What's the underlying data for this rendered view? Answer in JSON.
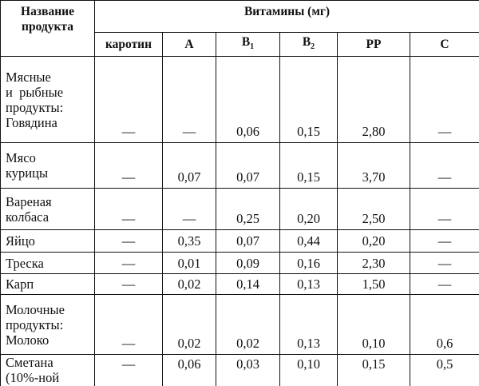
{
  "table": {
    "header": {
      "name": "Название продукта",
      "group": "Витамины (мг)",
      "columns": [
        {
          "letter": "каротин"
        },
        {
          "letter": "А"
        },
        {
          "letter": "В",
          "sub": "1"
        },
        {
          "letter": "В",
          "sub": "2"
        },
        {
          "letter": "PP"
        },
        {
          "letter": "С"
        }
      ]
    },
    "rows": [
      {
        "name": [
          "Мясные",
          "и  рыбные",
          "продукты:",
          "Говядина"
        ],
        "values": [
          "—",
          "—",
          "0,06",
          "0,15",
          "2,80",
          "—"
        ]
      },
      {
        "name": [
          "Мясо",
          "курицы"
        ],
        "values": [
          "—",
          "0,07",
          "0,07",
          "0,15",
          "3,70",
          "—"
        ]
      },
      {
        "name": [
          "Вареная",
          "колбаса"
        ],
        "values": [
          "—",
          "—",
          "0,25",
          "0,20",
          "2,50",
          "—"
        ]
      },
      {
        "name": [
          "Яйцо"
        ],
        "values": [
          "—",
          "0,35",
          "0,07",
          "0,44",
          "0,20",
          "—"
        ]
      },
      {
        "name": [
          "Треска"
        ],
        "values": [
          "—",
          "0,01",
          "0,09",
          "0,16",
          "2,30",
          "—"
        ]
      },
      {
        "name": [
          "Карп"
        ],
        "values": [
          "—",
          "0,02",
          "0,14",
          "0,13",
          "1,50",
          "—"
        ]
      },
      {
        "name": [
          "Молочные",
          "продукты:",
          "Молоко"
        ],
        "values": [
          "—",
          "0,02",
          "0,02",
          "0,13",
          "0,10",
          "0,6"
        ]
      },
      {
        "name": [
          "Сметана",
          "(10%-ной"
        ],
        "values": [
          "—",
          "0,06",
          "0,03",
          "0,10",
          "0,15",
          "0,5"
        ]
      }
    ]
  }
}
